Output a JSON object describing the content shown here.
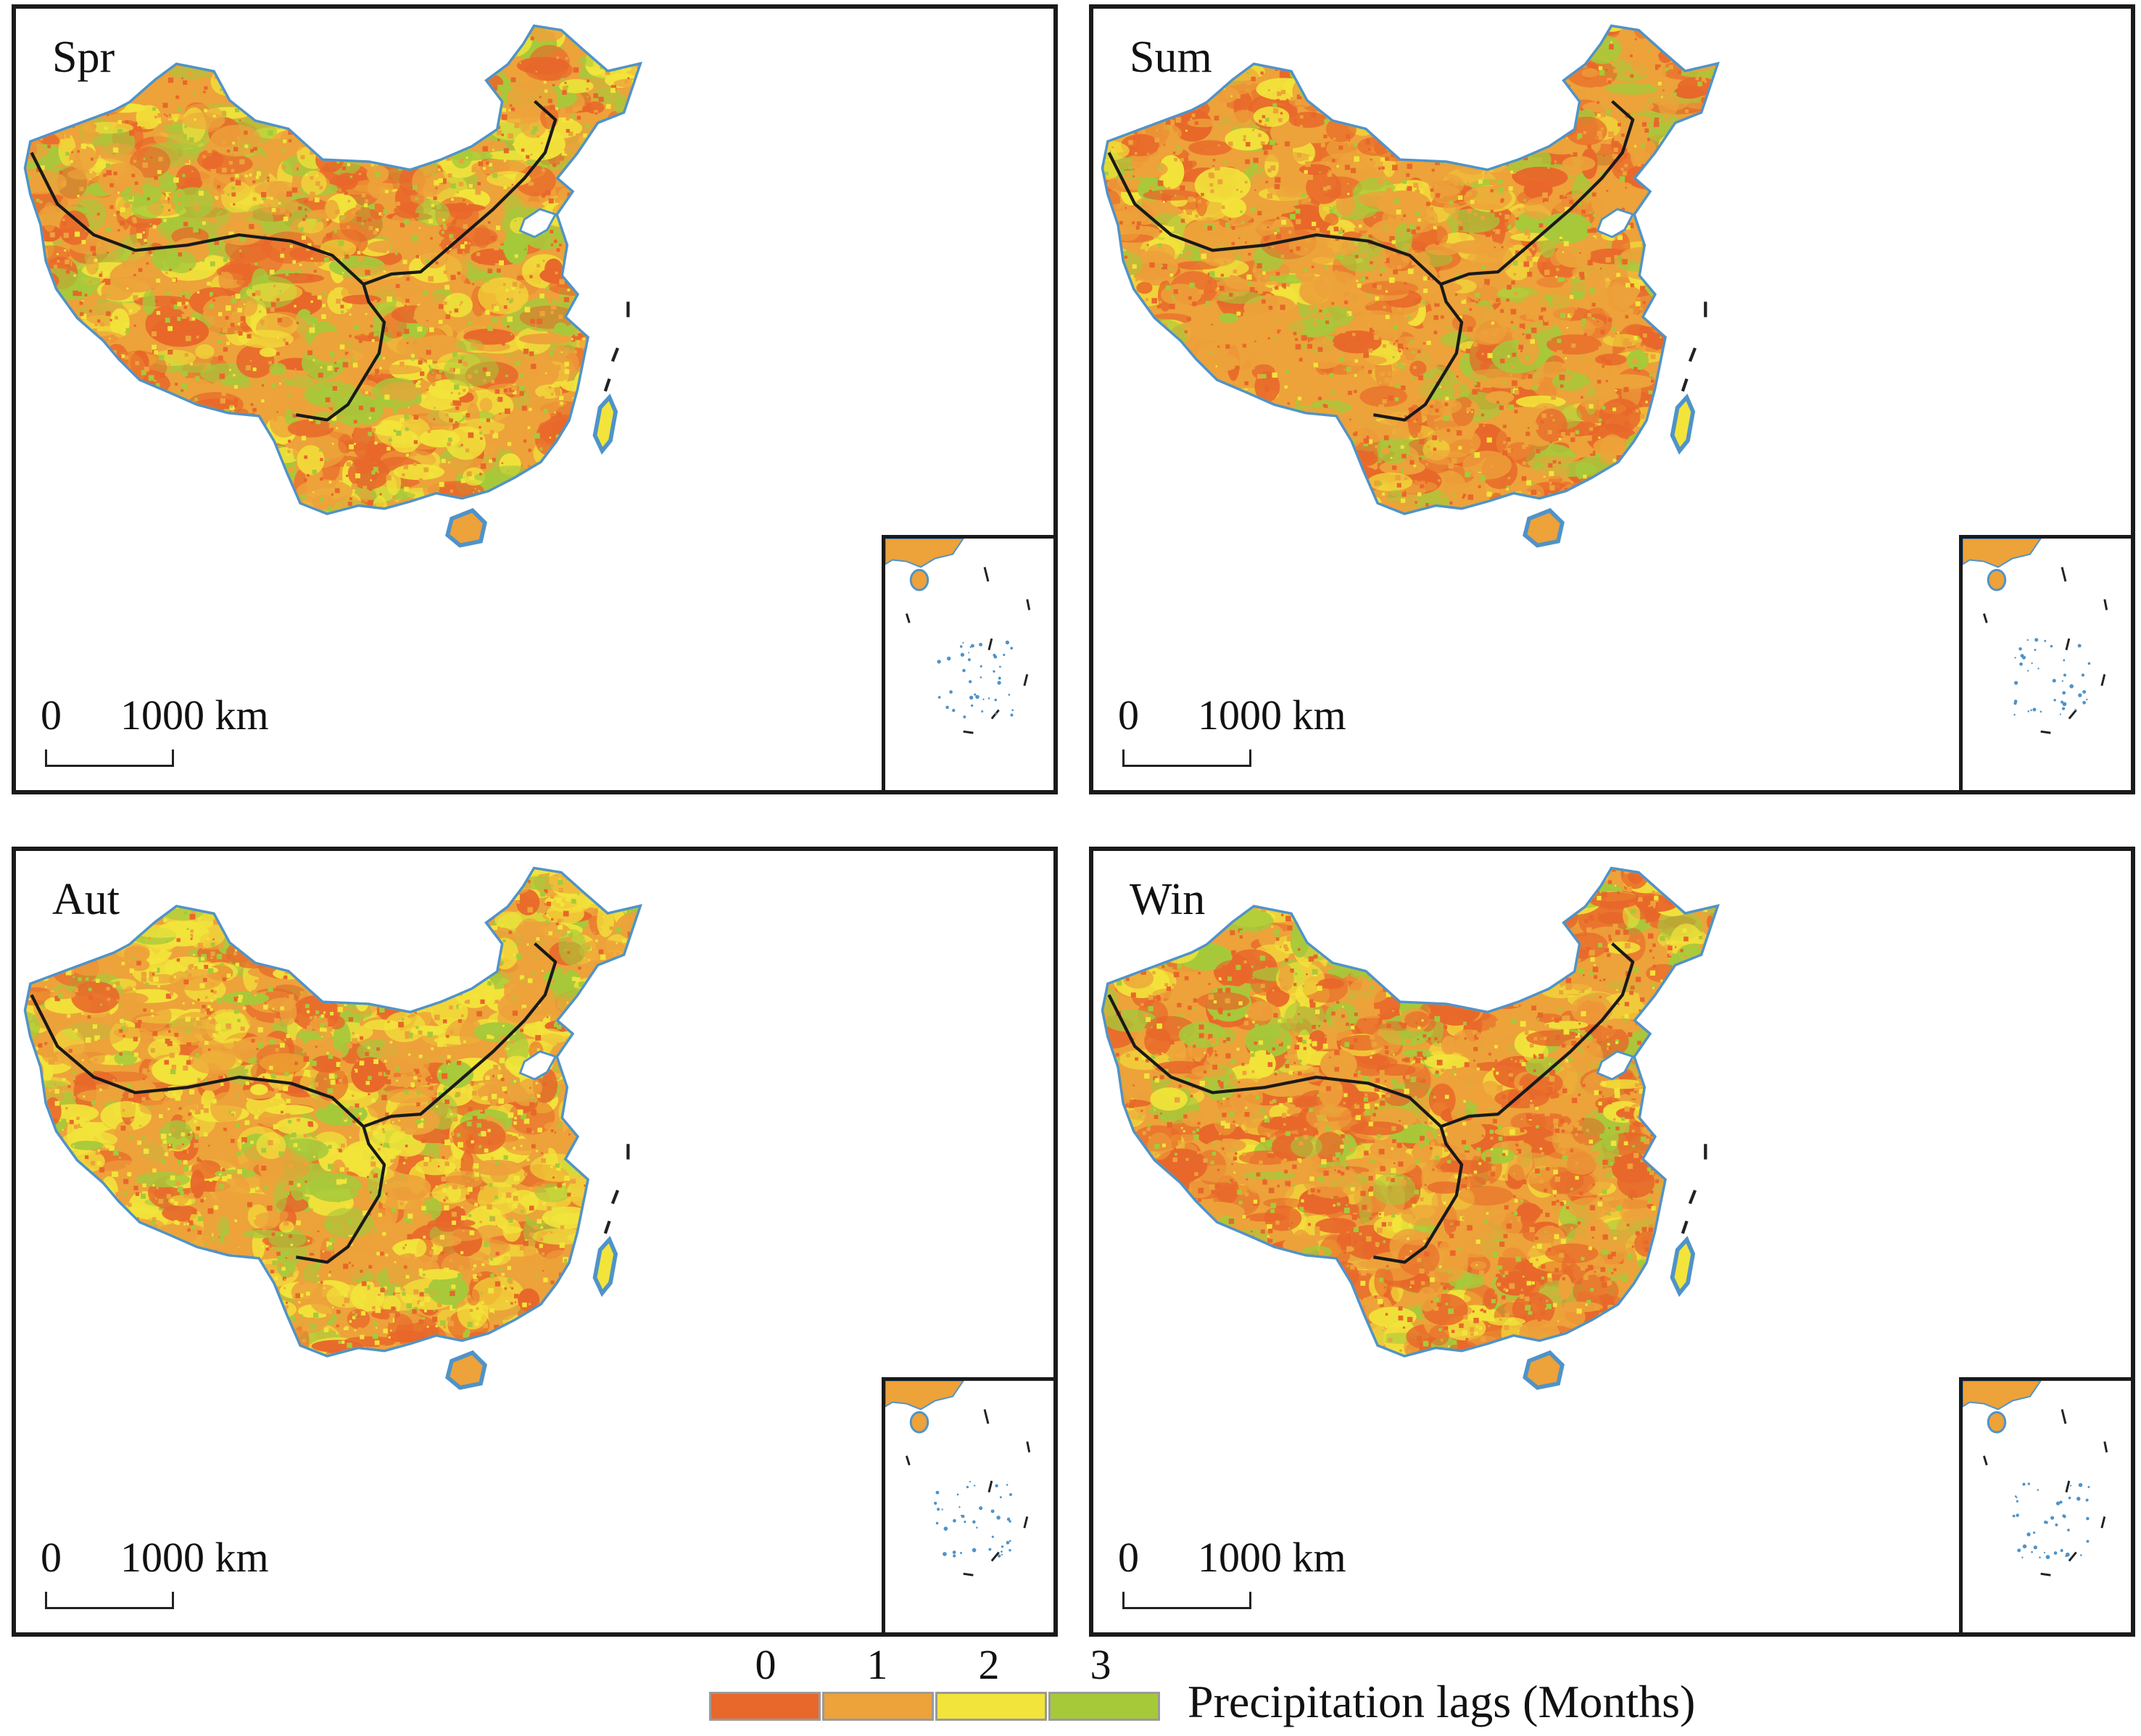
{
  "panels": [
    {
      "label": "Spr",
      "scale_zero": "0",
      "scale_distance": "1000 km"
    },
    {
      "label": "Sum",
      "scale_zero": "0",
      "scale_distance": "1000 km"
    },
    {
      "label": "Aut",
      "scale_zero": "0",
      "scale_distance": "1000 km"
    },
    {
      "label": "Win",
      "scale_zero": "0",
      "scale_distance": "1000 km"
    }
  ],
  "legend": {
    "title": "Precipitation  lags (Months)",
    "ticks": [
      "0",
      "1",
      "2",
      "3"
    ],
    "colors": [
      "#e8672a",
      "#eda23a",
      "#f2e43a",
      "#a6c93a"
    ]
  },
  "palette": {
    "lag0": "#e8672a",
    "lag1": "#eda23a",
    "lag2": "#f2e43a",
    "lag3": "#a6c93a",
    "water": "#4f93c9"
  }
}
